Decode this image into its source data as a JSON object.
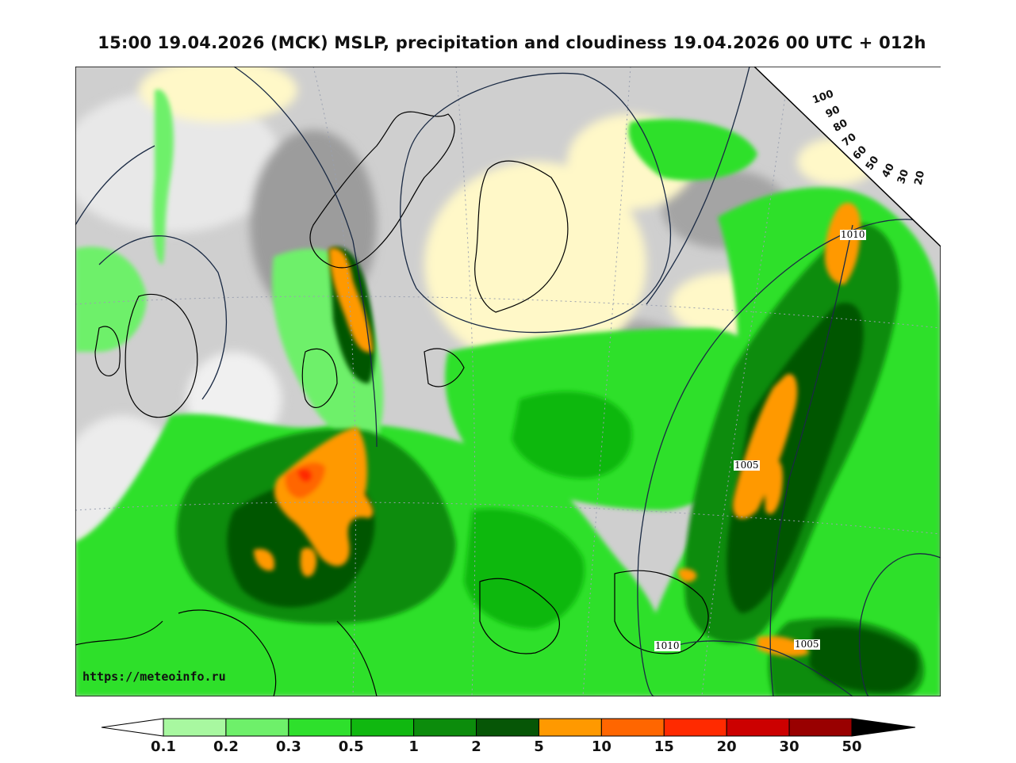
{
  "title": "15:00 19.04.2026 (MCK) MSLP, precipitation and cloudiness 19.04.2026 00 UTC + 012h",
  "watermark": "https://meteoinfo.ru",
  "isobar_labels": [
    "1010",
    "1005",
    "1010",
    "1005"
  ],
  "cloudiness_scale": {
    "ticks": [
      "100",
      "90",
      "80",
      "70",
      "60",
      "50",
      "40",
      "30",
      "20"
    ]
  },
  "precip_scale": {
    "ticks": [
      "0.1",
      "0.2",
      "0.3",
      "0.5",
      "1",
      "2",
      "5",
      "10",
      "15",
      "20",
      "30",
      "50"
    ],
    "colors": [
      "#ffffff",
      "#a8f8a0",
      "#6ef06a",
      "#2ee02c",
      "#10b810",
      "#0c8c0c",
      "#065606",
      "#ff9900",
      "#ff6600",
      "#ff2a00",
      "#cc0000",
      "#990000",
      "#000000"
    ]
  },
  "map_colors": {
    "land_clear": "#fff8c8",
    "cloud_light": "#e4e4e4",
    "cloud_mid": "#c4c4c4",
    "cloud_dark": "#a0a0a0",
    "precip_light": "#6ef06a",
    "precip_mid": "#10b810",
    "precip_heavy": "#065606",
    "precip_orange": "#ff9900",
    "precip_red": "#ff2a00"
  }
}
